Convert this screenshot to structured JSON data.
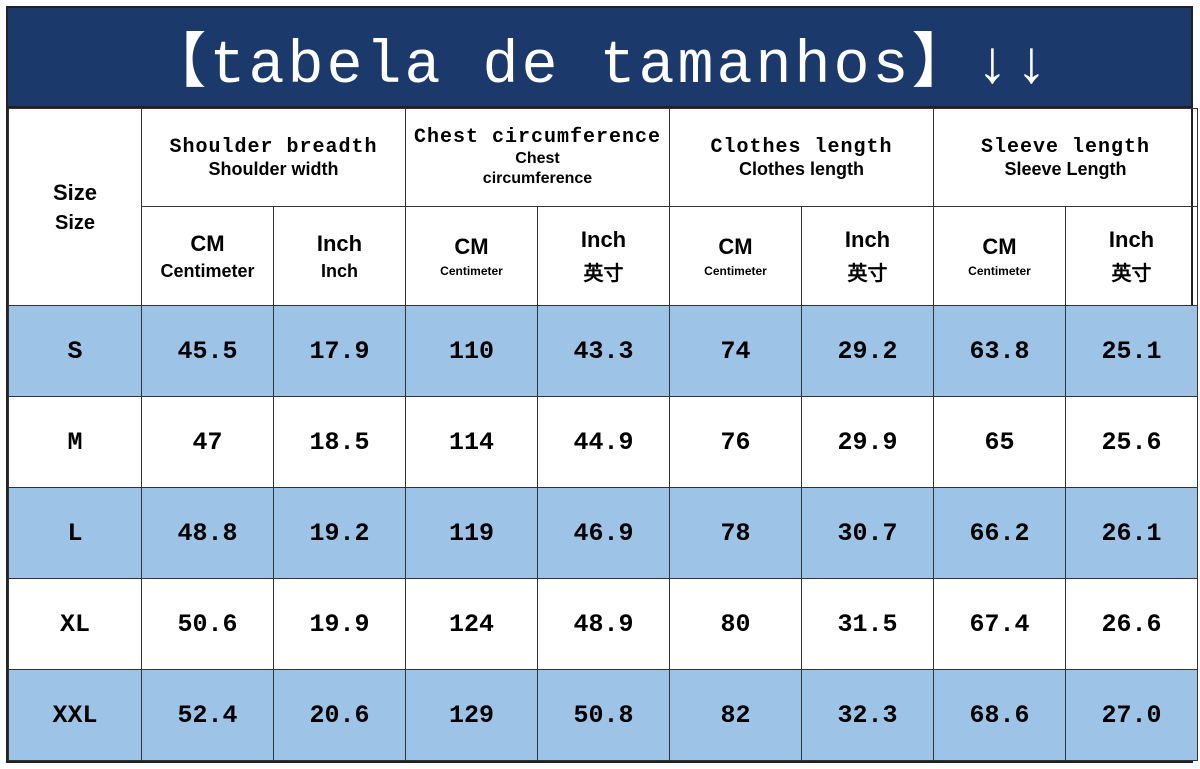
{
  "banner": {
    "title": "【tabela de tamanhos】↓↓"
  },
  "table": {
    "size_header": {
      "line1": "Size",
      "line2": "Size"
    },
    "groups": [
      {
        "line1": "Shoulder breadth",
        "line2": "Shoulder width"
      },
      {
        "line1": "Chest circumference",
        "line2": "Chest circumference"
      },
      {
        "line1": "Clothes length",
        "line2": "Clothes length"
      },
      {
        "line1": "Sleeve length",
        "line2": "Sleeve Length"
      }
    ],
    "units": [
      {
        "line1": "CM",
        "line2": "Centimeter"
      },
      {
        "line1": "Inch",
        "line2": "Inch"
      },
      {
        "line1": "CM",
        "line2": "Centimeter"
      },
      {
        "line1": "Inch",
        "line2": "英寸"
      },
      {
        "line1": "CM",
        "line2": "Centimeter"
      },
      {
        "line1": "Inch",
        "line2": "英寸"
      },
      {
        "line1": "CM",
        "line2": "Centimeter"
      },
      {
        "line1": "Inch",
        "line2": "英寸"
      }
    ],
    "rows": [
      {
        "size": "S",
        "values": [
          "45.5",
          "17.9",
          "110",
          "43.3",
          "74",
          "29.2",
          "63.8",
          "25.1"
        ]
      },
      {
        "size": "M",
        "values": [
          "47",
          "18.5",
          "114",
          "44.9",
          "76",
          "29.9",
          "65",
          "25.6"
        ]
      },
      {
        "size": "L",
        "values": [
          "48.8",
          "19.2",
          "119",
          "46.9",
          "78",
          "30.7",
          "66.2",
          "26.1"
        ]
      },
      {
        "size": "XL",
        "values": [
          "50.6",
          "19.9",
          "124",
          "48.9",
          "80",
          "31.5",
          "67.4",
          "26.6"
        ]
      },
      {
        "size": "XXL",
        "values": [
          "52.4",
          "20.6",
          "129",
          "50.8",
          "82",
          "32.3",
          "68.6",
          "27.0"
        ]
      }
    ]
  },
  "colors": {
    "banner": "#1b3a6b",
    "row_blue": "#9dc3e6",
    "row_white": "#ffffff"
  }
}
